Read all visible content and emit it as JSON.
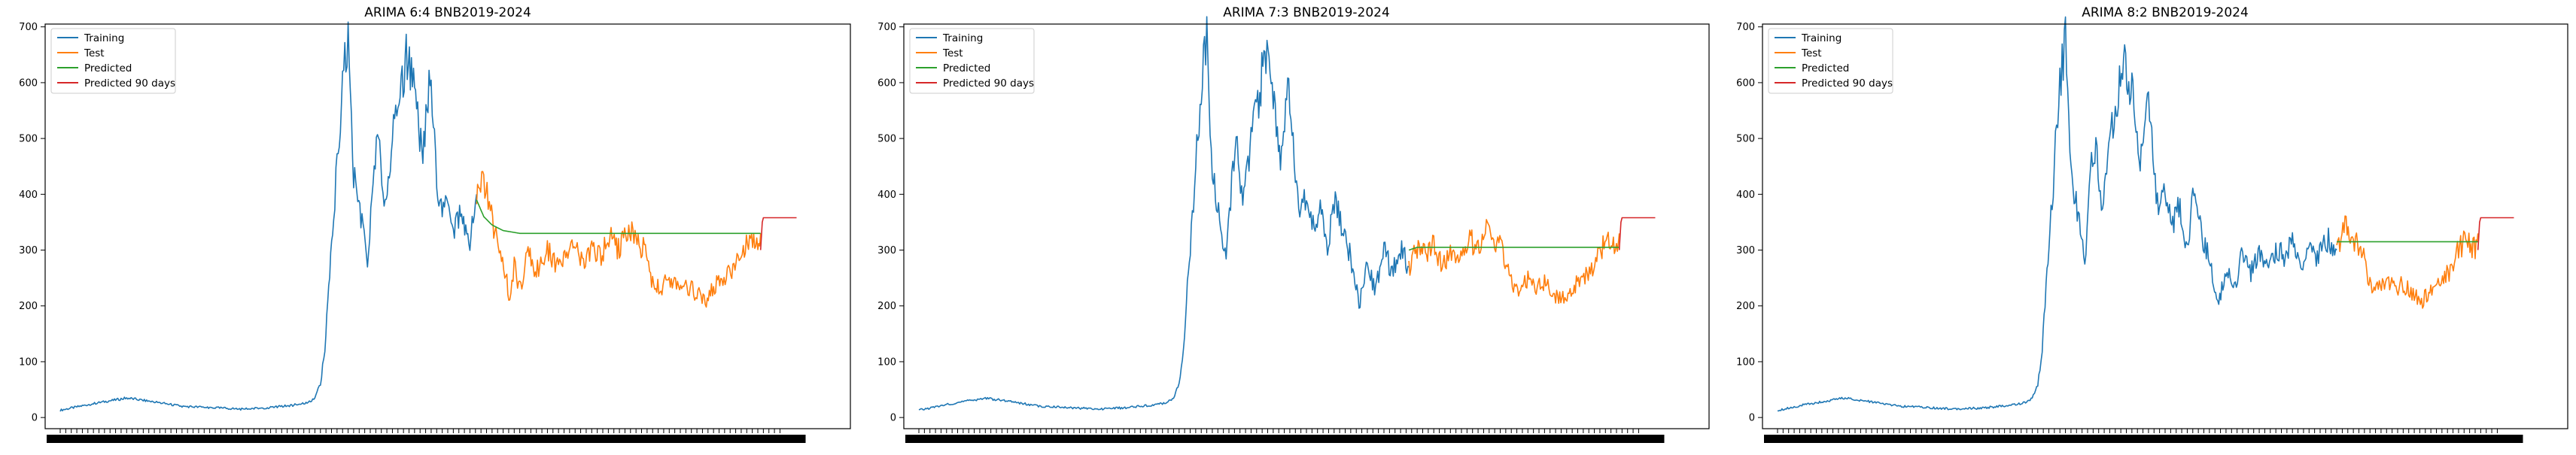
{
  "colors": {
    "training": "#1f77b4",
    "test": "#ff7f0e",
    "predicted": "#2ca02c",
    "predicted_90": "#d62728",
    "axis": "#000000",
    "xtick_band": "#000000"
  },
  "chart_data": [
    {
      "type": "line",
      "title": "ARIMA 6:4 BNB2019-2024",
      "xlabel": "",
      "ylabel": "",
      "ylim": [
        -20,
        705
      ],
      "yticks": [
        0,
        100,
        200,
        300,
        400,
        500,
        600,
        700
      ],
      "x_tick_labels": "dense overlapping date labels (unreadable)",
      "legend": {
        "placement": "top-left",
        "entries": [
          "Training",
          "Test",
          "Predicted",
          "Predicted 90 days"
        ]
      },
      "grid": false,
      "x_unit": "days since first observation",
      "series": [
        {
          "name": "Training",
          "color_key": "training",
          "x": [
            0,
            60,
            120,
            170,
            220,
            270,
            330,
            380,
            420,
            440,
            450,
            460,
            470,
            478,
            485,
            492,
            500,
            510,
            520,
            530,
            545,
            555,
            565,
            575,
            585,
            600,
            612,
            625,
            640,
            655,
            668,
            680,
            690,
            700,
            712,
            725,
            738,
            752
          ],
          "y": [
            13,
            25,
            35,
            28,
            20,
            18,
            15,
            18,
            22,
            25,
            28,
            35,
            60,
            120,
            240,
            330,
            450,
            600,
            675,
            430,
            350,
            270,
            430,
            500,
            380,
            500,
            560,
            650,
            580,
            460,
            620,
            420,
            370,
            400,
            340,
            380,
            300,
            400
          ]
        },
        {
          "name": "Test",
          "color_key": "test",
          "x": [
            752,
            765,
            775,
            785,
            795,
            805,
            812,
            820,
            830,
            845,
            860,
            880,
            900,
            915,
            930,
            945,
            960,
            975,
            995,
            1010,
            1025,
            1040,
            1055,
            1070,
            1085,
            1100,
            1115,
            1130,
            1150,
            1165,
            1180,
            1195,
            1215,
            1230,
            1245,
            1260,
            1265
          ],
          "y": [
            400,
            430,
            380,
            330,
            290,
            260,
            200,
            270,
            230,
            300,
            260,
            300,
            270,
            290,
            310,
            270,
            300,
            290,
            320,
            300,
            340,
            320,
            300,
            240,
            230,
            250,
            230,
            240,
            220,
            210,
            230,
            250,
            260,
            300,
            320,
            300,
            330
          ]
        },
        {
          "name": "Predicted",
          "color_key": "predicted",
          "x": [
            752,
            765,
            780,
            800,
            830,
            900,
            1000,
            1100,
            1200,
            1265
          ],
          "y": [
            390,
            360,
            345,
            335,
            330,
            330,
            330,
            330,
            330,
            330
          ]
        },
        {
          "name": "Predicted 90 days",
          "color_key": "predicted_90",
          "x": [
            1265,
            1268,
            1270,
            1330
          ],
          "y": [
            300,
            350,
            358,
            358
          ]
        }
      ]
    },
    {
      "type": "line",
      "title": "ARIMA 7:3 BNB2019-2024",
      "xlabel": "",
      "ylabel": "",
      "ylim": [
        -20,
        705
      ],
      "yticks": [
        0,
        100,
        200,
        300,
        400,
        500,
        600,
        700
      ],
      "x_tick_labels": "dense overlapping date labels (unreadable)",
      "legend": {
        "placement": "top-left",
        "entries": [
          "Training",
          "Test",
          "Predicted",
          "Predicted 90 days"
        ]
      },
      "grid": false,
      "x_unit": "days since first observation",
      "series": [
        {
          "name": "Training",
          "color_key": "training",
          "x": [
            0,
            60,
            120,
            170,
            220,
            270,
            330,
            380,
            420,
            440,
            450,
            460,
            470,
            478,
            485,
            492,
            500,
            510,
            520,
            530,
            545,
            555,
            565,
            575,
            585,
            600,
            612,
            625,
            640,
            655,
            668,
            680,
            690,
            700,
            712,
            725,
            738,
            752,
            765,
            780,
            795,
            810,
            825,
            840,
            855,
            870,
            885
          ],
          "y": [
            13,
            25,
            35,
            28,
            20,
            18,
            15,
            18,
            22,
            25,
            28,
            35,
            60,
            120,
            240,
            330,
            450,
            600,
            675,
            430,
            350,
            270,
            430,
            500,
            380,
            500,
            560,
            650,
            580,
            460,
            620,
            420,
            370,
            400,
            340,
            380,
            300,
            400,
            330,
            290,
            200,
            270,
            230,
            300,
            260,
            300,
            270
          ]
        },
        {
          "name": "Test",
          "color_key": "test",
          "x": [
            885,
            900,
            915,
            930,
            945,
            960,
            975,
            995,
            1010,
            1025,
            1040,
            1055,
            1070,
            1085,
            1100,
            1115,
            1130,
            1150,
            1165,
            1180,
            1195,
            1215,
            1230,
            1245,
            1260,
            1265
          ],
          "y": [
            270,
            300,
            290,
            310,
            270,
            300,
            290,
            320,
            300,
            340,
            320,
            300,
            240,
            230,
            250,
            230,
            240,
            220,
            210,
            230,
            250,
            260,
            300,
            320,
            300,
            330
          ]
        },
        {
          "name": "Predicted",
          "color_key": "predicted",
          "x": [
            885,
            900,
            950,
            1000,
            1100,
            1200,
            1265
          ],
          "y": [
            300,
            305,
            305,
            305,
            305,
            305,
            305
          ]
        },
        {
          "name": "Predicted 90 days",
          "color_key": "predicted_90",
          "x": [
            1265,
            1268,
            1270,
            1330
          ],
          "y": [
            300,
            350,
            358,
            358
          ]
        }
      ]
    },
    {
      "type": "line",
      "title": "ARIMA 8:2 BNB2019-2024",
      "xlabel": "",
      "ylabel": "",
      "ylim": [
        -20,
        705
      ],
      "yticks": [
        0,
        100,
        200,
        300,
        400,
        500,
        600,
        700
      ],
      "x_tick_labels": "dense overlapping date labels (unreadable)",
      "legend": {
        "placement": "top-left",
        "entries": [
          "Training",
          "Test",
          "Predicted",
          "Predicted 90 days"
        ]
      },
      "grid": false,
      "x_unit": "days since first observation",
      "series": [
        {
          "name": "Training",
          "color_key": "training",
          "x": [
            0,
            60,
            120,
            170,
            220,
            270,
            330,
            380,
            420,
            440,
            450,
            460,
            470,
            478,
            485,
            492,
            500,
            510,
            520,
            530,
            545,
            555,
            565,
            575,
            585,
            600,
            612,
            625,
            640,
            655,
            668,
            680,
            690,
            700,
            712,
            725,
            738,
            752,
            765,
            780,
            795,
            810,
            825,
            840,
            855,
            870,
            885,
            900,
            915,
            930,
            945,
            960,
            975,
            995,
            1010
          ],
          "y": [
            13,
            25,
            35,
            28,
            20,
            18,
            15,
            18,
            22,
            25,
            28,
            35,
            60,
            120,
            240,
            330,
            450,
            600,
            675,
            430,
            350,
            270,
            430,
            500,
            380,
            500,
            560,
            650,
            580,
            460,
            620,
            420,
            370,
            400,
            340,
            380,
            300,
            400,
            330,
            290,
            200,
            270,
            230,
            300,
            260,
            300,
            270,
            300,
            290,
            310,
            270,
            300,
            290,
            320,
            300
          ]
        },
        {
          "name": "Test",
          "color_key": "test",
          "x": [
            1010,
            1025,
            1040,
            1055,
            1070,
            1085,
            1100,
            1115,
            1130,
            1150,
            1165,
            1180,
            1195,
            1215,
            1230,
            1245,
            1260,
            1265
          ],
          "y": [
            300,
            340,
            320,
            300,
            240,
            230,
            250,
            230,
            240,
            220,
            210,
            230,
            250,
            260,
            300,
            320,
            300,
            330
          ]
        },
        {
          "name": "Predicted",
          "color_key": "predicted",
          "x": [
            1010,
            1030,
            1100,
            1200,
            1265
          ],
          "y": [
            315,
            315,
            315,
            315,
            315
          ]
        },
        {
          "name": "Predicted 90 days",
          "color_key": "predicted_90",
          "x": [
            1265,
            1268,
            1270,
            1330
          ],
          "y": [
            300,
            350,
            358,
            358
          ]
        }
      ]
    }
  ]
}
